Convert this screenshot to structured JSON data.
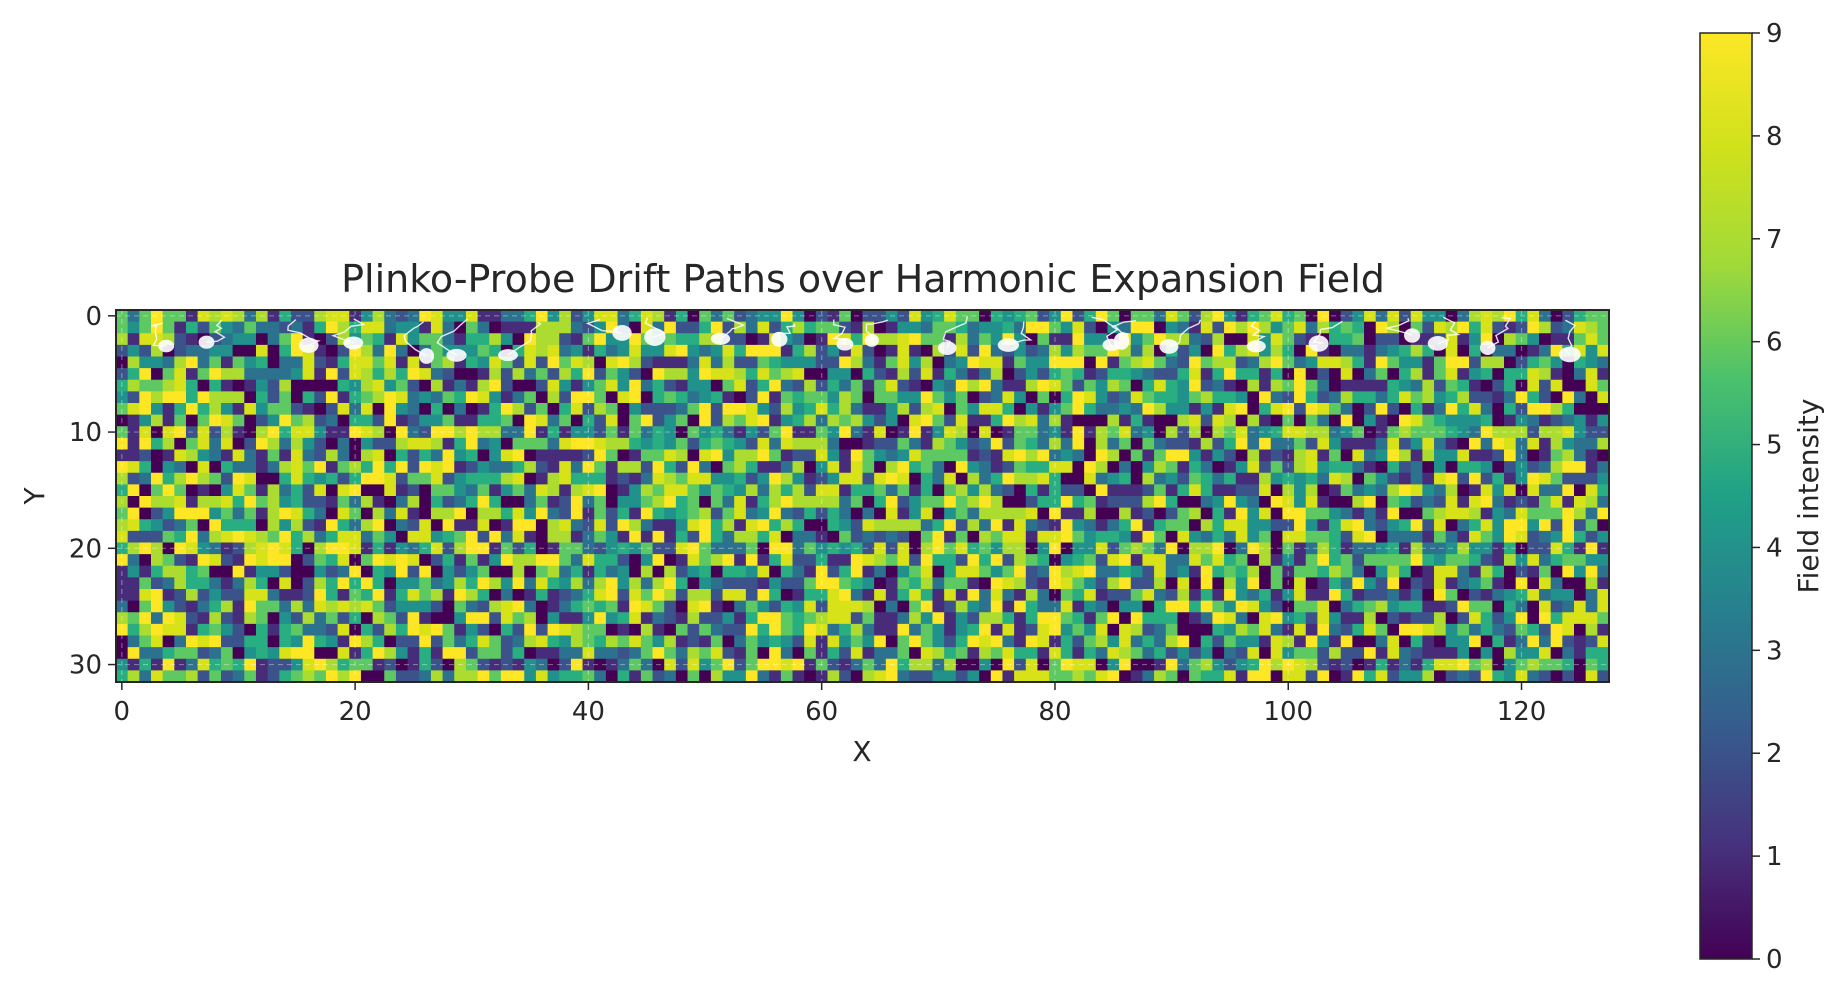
{
  "chart_data": {
    "type": "heatmap",
    "title": "Plinko-Probe Drift Paths over Harmonic Expansion Field",
    "xlabel": "X",
    "ylabel": "Y",
    "grid_cols": 128,
    "grid_rows": 32,
    "x_ticks": [
      "0",
      "20",
      "40",
      "60",
      "80",
      "100",
      "120"
    ],
    "y_ticks": [
      "0",
      "10",
      "20",
      "30"
    ],
    "colorbar": {
      "label": "Field intensity",
      "min": 0,
      "max": 9,
      "ticks": [
        "0",
        "1",
        "2",
        "3",
        "4",
        "5",
        "6",
        "7",
        "8",
        "9"
      ],
      "colormap": "viridis"
    },
    "grid_lines": true,
    "overlay": "white probe drift paths near the top rows"
  }
}
